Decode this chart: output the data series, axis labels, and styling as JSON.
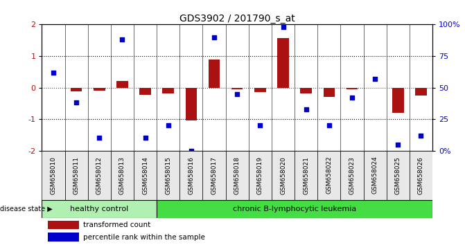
{
  "title": "GDS3902 / 201790_s_at",
  "samples": [
    "GSM658010",
    "GSM658011",
    "GSM658012",
    "GSM658013",
    "GSM658014",
    "GSM658015",
    "GSM658016",
    "GSM658017",
    "GSM658018",
    "GSM658019",
    "GSM658020",
    "GSM658021",
    "GSM658022",
    "GSM658023",
    "GSM658024",
    "GSM658025",
    "GSM658026"
  ],
  "red_bars": [
    0.0,
    -0.12,
    -0.1,
    0.2,
    -0.22,
    -0.18,
    -1.05,
    0.88,
    -0.05,
    -0.15,
    1.58,
    -0.18,
    -0.3,
    -0.05,
    0.0,
    -0.8,
    -0.25
  ],
  "blue_dots": [
    62,
    38,
    10,
    88,
    10,
    20,
    0,
    90,
    45,
    20,
    98,
    33,
    20,
    42,
    57,
    5,
    12
  ],
  "group_labels": [
    "healthy control",
    "chronic B-lymphocytic leukemia"
  ],
  "group_boundary": 5,
  "group_colors": [
    "#b0f0b0",
    "#44dd44"
  ],
  "bar_color": "#aa1111",
  "dot_color": "#0000cc",
  "ylim_left": [
    -2,
    2
  ],
  "ylim_right": [
    0,
    100
  ],
  "yticks_left": [
    -2,
    -1,
    0,
    1,
    2
  ],
  "yticks_right": [
    0,
    25,
    50,
    75,
    100
  ],
  "ytick_labels_right": [
    "0%",
    "25",
    "50",
    "75",
    "100%"
  ],
  "title_fontsize": 10,
  "tick_label_fontsize": 6.5,
  "legend_fontsize": 7.5,
  "group_label_fontsize": 8
}
